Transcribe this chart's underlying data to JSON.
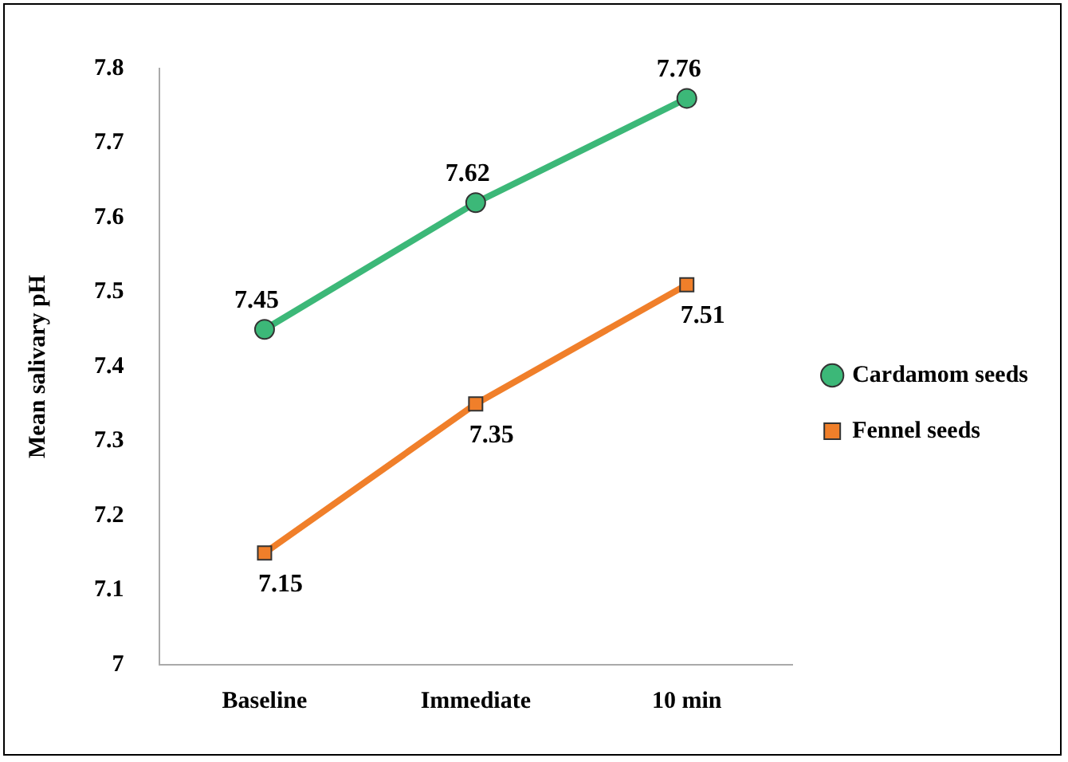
{
  "chart_data": {
    "type": "line",
    "ylabel": "Mean salivary pH",
    "categories": [
      "Baseline",
      "Immediate",
      "10 min"
    ],
    "series": [
      {
        "name": "Cardamom seeds",
        "color": "#3cb878",
        "marker": "circle",
        "values": [
          7.45,
          7.62,
          7.76
        ]
      },
      {
        "name": "Fennel seeds",
        "color": "#f07f2a",
        "marker": "square",
        "values": [
          7.15,
          7.35,
          7.51
        ]
      }
    ],
    "ylim": [
      7,
      7.8
    ],
    "yticks": [
      7,
      7.1,
      7.2,
      7.3,
      7.4,
      7.5,
      7.6,
      7.7,
      7.8
    ],
    "grid": false,
    "legend": "right",
    "data_labels": true
  }
}
